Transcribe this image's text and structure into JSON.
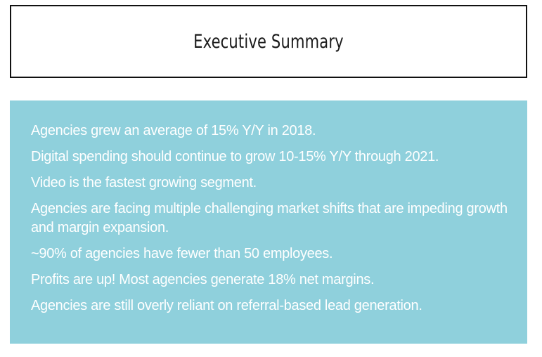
{
  "header": {
    "title": "Executive Summary"
  },
  "summary": {
    "items": [
      "Agencies grew an average of 15% Y/Y in 2018.",
      "Digital spending should continue to grow 10-15% Y/Y through 2021.",
      "Video is the fastest growing segment.",
      "Agencies are facing multiple challenging market shifts that are impeding growth and margin expansion.",
      "~90% of agencies have fewer than 50 employees.",
      "Profits are up! Most agencies generate 18% net  margins.",
      "Agencies are still overly reliant on referral-based lead generation."
    ]
  },
  "colors": {
    "panel_background": "#8fd0dc",
    "panel_text": "#ffffff",
    "title_border": "#111111"
  }
}
